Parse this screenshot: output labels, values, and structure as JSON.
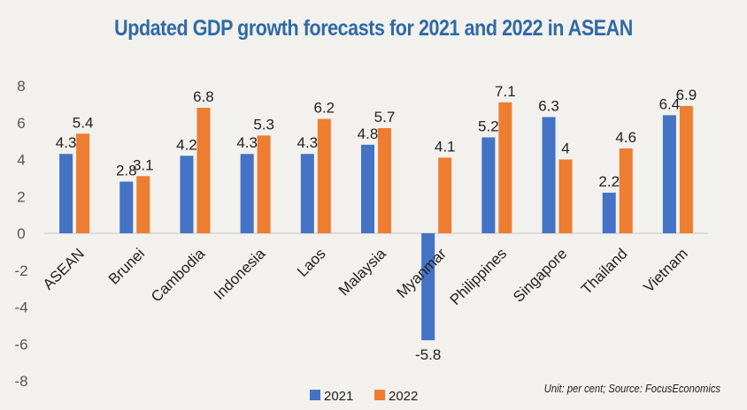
{
  "chart_data": {
    "type": "bar",
    "title": "Updated GDP growth forecasts for 2021 and 2022 in ASEAN",
    "categories": [
      "ASEAN",
      "Brunei",
      "Cambodia",
      "Indonesia",
      "Laos",
      "Malaysia",
      "Myanmar",
      "Philippines",
      "Singapore",
      "Thailand",
      "Vietnam"
    ],
    "series": [
      {
        "name": "2021",
        "color": "#4472c4",
        "values": [
          4.3,
          2.8,
          4.2,
          4.3,
          4.3,
          4.8,
          -5.8,
          5.2,
          6.3,
          2.2,
          6.4
        ]
      },
      {
        "name": "2022",
        "color": "#ed7d31",
        "values": [
          5.4,
          3.1,
          6.8,
          5.3,
          6.2,
          5.7,
          4.1,
          7.1,
          4,
          4.6,
          6.9
        ]
      }
    ],
    "ylim": [
      -8,
      8
    ],
    "yticks": [
      8,
      6,
      4,
      2,
      0,
      -2,
      -4,
      -6,
      -8
    ],
    "grid": false,
    "legend": "bottom",
    "note": "Unit: per cent; Source: FocusEconomics"
  }
}
